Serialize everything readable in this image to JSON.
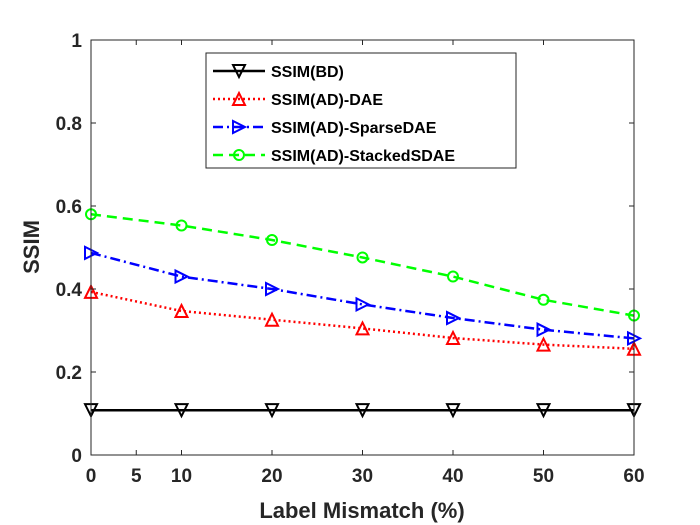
{
  "chart_data": {
    "type": "line",
    "title": "",
    "xlabel": "Label Mismatch (%)",
    "ylabel": "SSIM",
    "xlim": [
      0,
      60
    ],
    "ylim": [
      0,
      1
    ],
    "xticks": [
      0,
      5,
      10,
      20,
      30,
      40,
      50,
      60
    ],
    "yticks": [
      0,
      0.2,
      0.4,
      0.6,
      0.8,
      1
    ],
    "x": [
      0,
      10,
      20,
      30,
      40,
      50,
      60
    ],
    "grid": false,
    "legend_position": "top-center",
    "series": [
      {
        "name": "SSIM(BD)",
        "values": [
          0.108,
          0.108,
          0.108,
          0.108,
          0.108,
          0.108,
          0.108
        ],
        "color": "#000000",
        "marker": "triangle-down",
        "linestyle": "solid"
      },
      {
        "name": "SSIM(AD)-DAE",
        "values": [
          0.393,
          0.347,
          0.326,
          0.305,
          0.282,
          0.266,
          0.256
        ],
        "color": "#ff0000",
        "marker": "triangle-up",
        "linestyle": "dotted"
      },
      {
        "name": "SSIM(AD)-SparseDAE",
        "values": [
          0.487,
          0.43,
          0.4,
          0.363,
          0.33,
          0.302,
          0.281
        ],
        "color": "#0000ff",
        "marker": "triangle-right",
        "linestyle": "dashdot"
      },
      {
        "name": "SSIM(AD)-StackedSDAE",
        "values": [
          0.58,
          0.553,
          0.518,
          0.476,
          0.43,
          0.374,
          0.336
        ],
        "color": "#00ff00",
        "marker": "circle",
        "linestyle": "dashed"
      }
    ]
  }
}
